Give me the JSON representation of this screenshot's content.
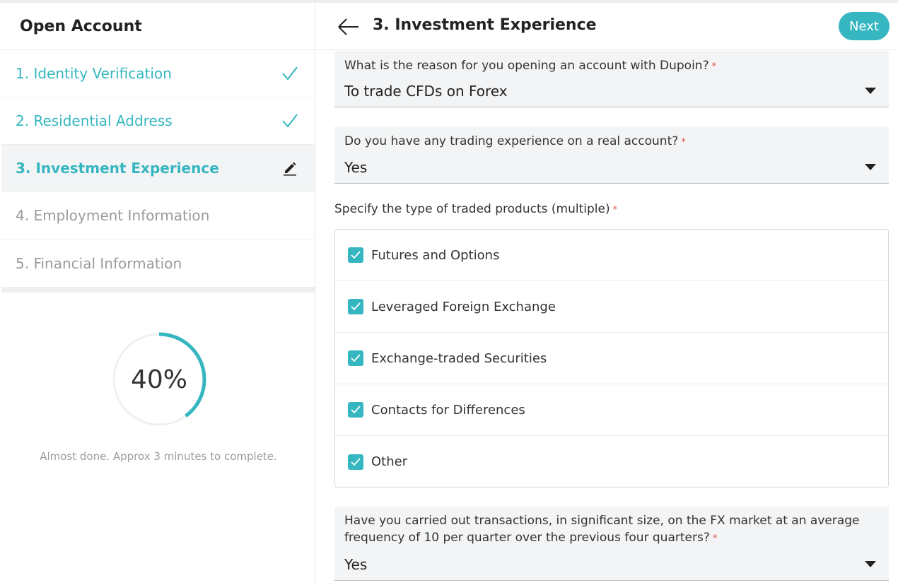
{
  "sidebar": {
    "title": "Open Account",
    "steps": [
      {
        "label": "1. Identity Verification",
        "status": "done",
        "icon": "checkmark-icon"
      },
      {
        "label": "2. Residential Address",
        "status": "done",
        "icon": "checkmark-icon"
      },
      {
        "label": "3. Investment Experience",
        "status": "active",
        "icon": "pencil-icon"
      },
      {
        "label": "4. Employment Information",
        "status": "pending"
      },
      {
        "label": "5. Financial Information",
        "status": "pending"
      }
    ],
    "progress": {
      "value": 0.4,
      "label": "40%",
      "caption": "Almost done. Approx 3 minutes to complete."
    }
  },
  "main": {
    "title": "3. Investment Experience",
    "back_icon": "arrow-left-icon",
    "next_label": "Next",
    "required_mark": "*",
    "q1": {
      "label": "What is the reason for you opening an account with Dupoin?",
      "value": "To trade CFDs on Forex"
    },
    "q2": {
      "label": "Do you have any trading experience on a real account?",
      "value": "Yes"
    },
    "products": {
      "label": "Specify the type of traded products (multiple)",
      "options": [
        {
          "label": "Futures and Options",
          "checked": true
        },
        {
          "label": "Leveraged Foreign Exchange",
          "checked": true
        },
        {
          "label": "Exchange-traded Securities",
          "checked": true
        },
        {
          "label": "Contacts for Differences",
          "checked": true
        },
        {
          "label": "Other",
          "checked": true
        }
      ]
    },
    "q3": {
      "label_line1": "Have you carried out transactions, in significant size, on the FX market at an average",
      "label_line2": "frequency of 10 per quarter over the previous four quarters?",
      "value": "Yes"
    }
  },
  "colors": {
    "accent": "#35b6c0",
    "required": "#e5534b",
    "field_bg": "#f3f4f5"
  }
}
